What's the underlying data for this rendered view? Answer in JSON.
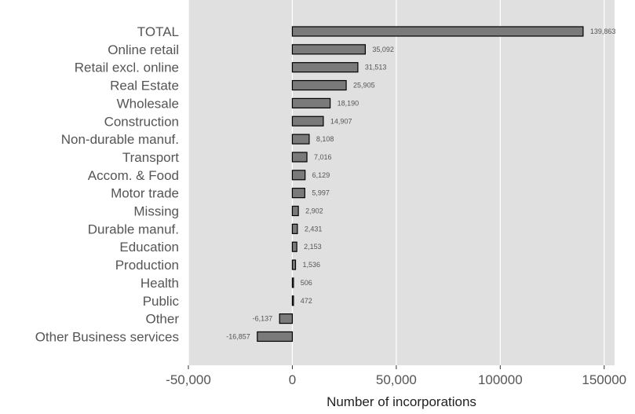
{
  "chart_data": {
    "type": "bar",
    "orientation": "horizontal",
    "categories": [
      "TOTAL",
      "Online retail",
      "Retail excl. online",
      "Real Estate",
      "Wholesale",
      "Construction",
      "Non-durable manuf.",
      "Transport",
      "Accom. & Food",
      "Motor trade",
      "Missing",
      "Durable manuf.",
      "Education",
      "Production",
      "Health",
      "Public",
      "Other",
      "Other Business services"
    ],
    "values": [
      139863,
      35092,
      31513,
      25905,
      18190,
      14907,
      8108,
      7016,
      6129,
      5997,
      2902,
      2431,
      2153,
      1536,
      506,
      472,
      -6137,
      -16857
    ],
    "value_labels": [
      "139,863",
      "35,092",
      "31,513",
      "25,905",
      "18,190",
      "14,907",
      "8,108",
      "7,016",
      "6,129",
      "5,997",
      "2,902",
      "2,431",
      "2,153",
      "1,536",
      "506",
      "472",
      "-6,137",
      "-16,857"
    ],
    "title": "",
    "xlabel": "Number of incorporations",
    "ylabel": "",
    "xlim": [
      -50000,
      155000
    ],
    "x_ticks": [
      -50000,
      0,
      50000,
      100000,
      150000
    ],
    "x_tick_labels": [
      "-50,000",
      "0",
      "50,000",
      "100000",
      "150000"
    ],
    "grid": true,
    "legend": "none",
    "colors": {
      "panel_background": "#e0e0e0",
      "grid": "#ffffff",
      "bar_fill": "#7a7a7a",
      "bar_stroke": "#000000"
    }
  }
}
